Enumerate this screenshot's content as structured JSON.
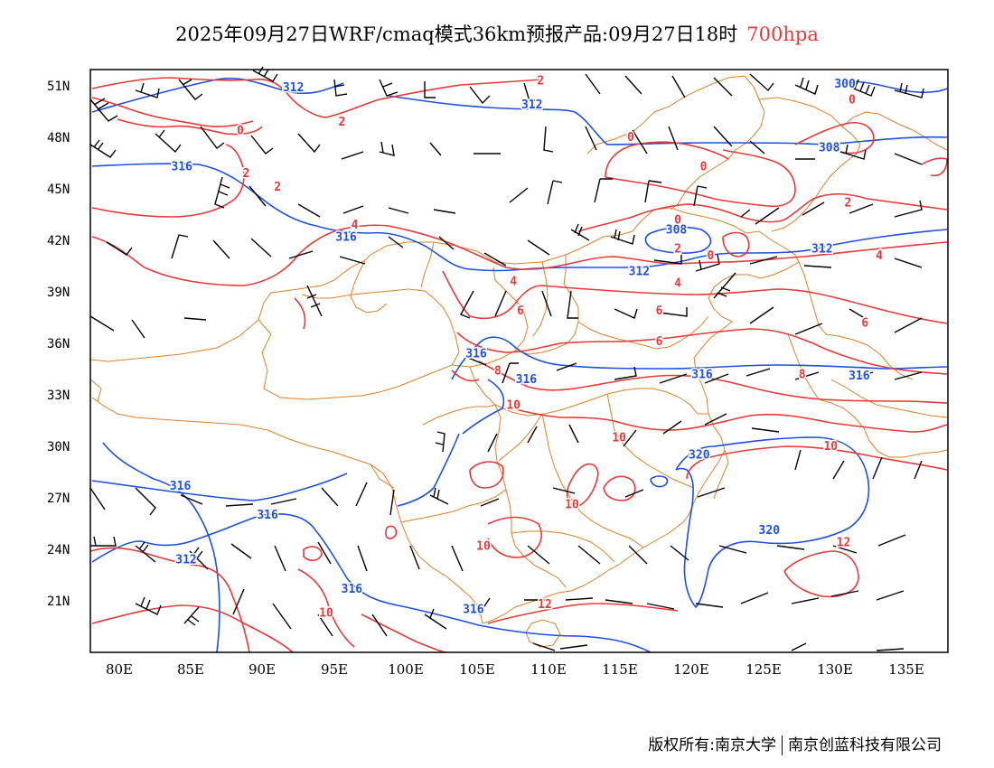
{
  "title": {
    "main": "2025年09月27日WRF/cmaq模式36km预报产品:09月27日18时",
    "level": "700hpa"
  },
  "colors": {
    "geopotential": "#1f4fe0",
    "temperature": "#e8393a",
    "boundary": "#d9822b",
    "barb": "#000000",
    "level_text": "#e8393a"
  },
  "axes": {
    "lat_labels": [
      "51N",
      "48N",
      "45N",
      "42N",
      "39N",
      "36N",
      "33N",
      "30N",
      "27N",
      "24N",
      "21N"
    ],
    "lon_labels": [
      "80E",
      "85E",
      "90E",
      "95E",
      "100E",
      "105E",
      "110E",
      "115E",
      "120E",
      "125E",
      "130E",
      "135E"
    ]
  },
  "contour_labels": {
    "geopotential": [
      {
        "text": "312",
        "lon": 92.2,
        "lat": 51.0
      },
      {
        "text": "312",
        "lon": 108.9,
        "lat": 50.0
      },
      {
        "text": "300",
        "lon": 130.8,
        "lat": 51.2
      },
      {
        "text": "308",
        "lon": 129.7,
        "lat": 47.5
      },
      {
        "text": "316",
        "lon": 84.4,
        "lat": 46.4
      },
      {
        "text": "316",
        "lon": 95.9,
        "lat": 42.3
      },
      {
        "text": "308",
        "lon": 119.0,
        "lat": 42.7
      },
      {
        "text": "312",
        "lon": 129.2,
        "lat": 41.6
      },
      {
        "text": "312",
        "lon": 116.4,
        "lat": 40.3
      },
      {
        "text": "316",
        "lon": 105.0,
        "lat": 35.5
      },
      {
        "text": "316",
        "lon": 108.5,
        "lat": 34.0
      },
      {
        "text": "316",
        "lon": 120.8,
        "lat": 34.3
      },
      {
        "text": "316",
        "lon": 131.8,
        "lat": 34.2
      },
      {
        "text": "320",
        "lon": 120.6,
        "lat": 29.6
      },
      {
        "text": "316",
        "lon": 84.3,
        "lat": 27.8
      },
      {
        "text": "316",
        "lon": 90.4,
        "lat": 26.1
      },
      {
        "text": "320",
        "lon": 125.5,
        "lat": 25.2
      },
      {
        "text": "312",
        "lon": 84.7,
        "lat": 23.5
      },
      {
        "text": "316",
        "lon": 96.3,
        "lat": 21.8
      },
      {
        "text": "316",
        "lon": 104.8,
        "lat": 20.6
      }
    ],
    "temperature": [
      {
        "text": "2",
        "lon": 109.5,
        "lat": 51.4
      },
      {
        "text": "0",
        "lon": 88.5,
        "lat": 48.5
      },
      {
        "text": "2",
        "lon": 95.6,
        "lat": 49.0
      },
      {
        "text": "0",
        "lon": 131.3,
        "lat": 50.3
      },
      {
        "text": "0",
        "lon": 115.8,
        "lat": 48.1
      },
      {
        "text": "0",
        "lon": 120.9,
        "lat": 46.4
      },
      {
        "text": "2",
        "lon": 88.9,
        "lat": 46.0
      },
      {
        "text": "2",
        "lon": 91.1,
        "lat": 45.2
      },
      {
        "text": "2",
        "lon": 131.0,
        "lat": 44.3
      },
      {
        "text": "0",
        "lon": 119.1,
        "lat": 43.3
      },
      {
        "text": "4",
        "lon": 96.5,
        "lat": 43.0
      },
      {
        "text": "2",
        "lon": 119.1,
        "lat": 41.6
      },
      {
        "text": "0",
        "lon": 121.4,
        "lat": 41.2
      },
      {
        "text": "4",
        "lon": 133.2,
        "lat": 41.2
      },
      {
        "text": "4",
        "lon": 107.6,
        "lat": 39.7
      },
      {
        "text": "4",
        "lon": 119.1,
        "lat": 39.6
      },
      {
        "text": "6",
        "lon": 108.1,
        "lat": 38.0
      },
      {
        "text": "6",
        "lon": 117.8,
        "lat": 38.0
      },
      {
        "text": "6",
        "lon": 132.2,
        "lat": 37.3
      },
      {
        "text": "6",
        "lon": 117.8,
        "lat": 36.2
      },
      {
        "text": "8",
        "lon": 106.5,
        "lat": 34.5
      },
      {
        "text": "8",
        "lon": 127.8,
        "lat": 34.3
      },
      {
        "text": "10",
        "lon": 107.6,
        "lat": 32.5
      },
      {
        "text": "10",
        "lon": 115.0,
        "lat": 30.6
      },
      {
        "text": "10",
        "lon": 129.8,
        "lat": 30.1
      },
      {
        "text": "10",
        "lon": 111.7,
        "lat": 26.7
      },
      {
        "text": "12",
        "lon": 130.7,
        "lat": 24.5
      },
      {
        "text": "10",
        "lon": 105.5,
        "lat": 24.3
      },
      {
        "text": "12",
        "lon": 109.8,
        "lat": 20.9
      },
      {
        "text": "10",
        "lon": 94.5,
        "lat": 20.4
      }
    ]
  },
  "footer": {
    "left": "版权所有:南京大学",
    "right": "南京创蓝科技有限公司"
  }
}
